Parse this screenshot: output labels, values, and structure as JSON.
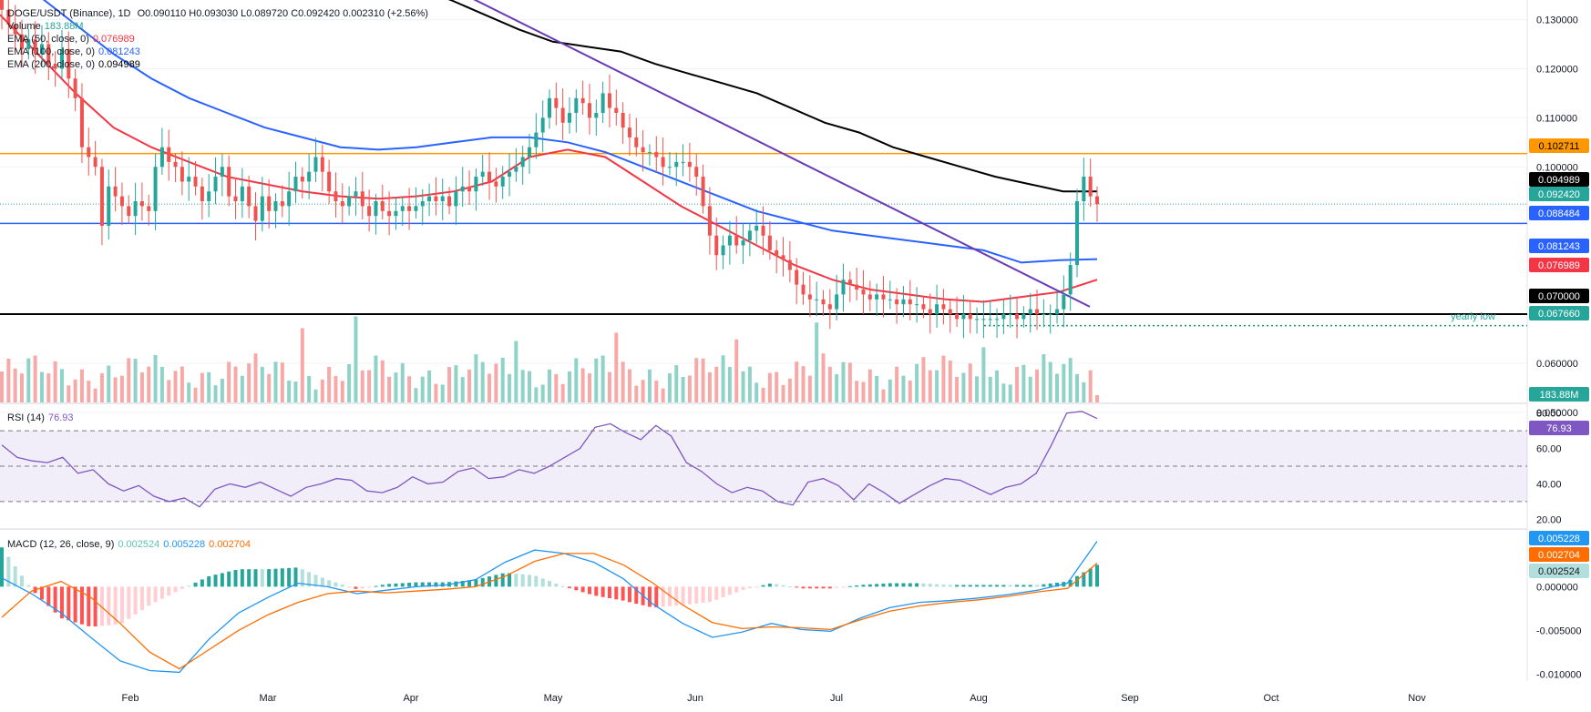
{
  "header": {
    "symbol": "DOGE/USDT (Binance), 1D",
    "ohlc": "O0.090110 H0.093030 L0.089720 C0.092420 0.002310 (+2.56%)",
    "volume_label": "Volume",
    "volume_value": "183.88M",
    "ema50_label": "EMA (50, close, 0)",
    "ema50_value": "0.076989",
    "ema100_label": "EMA (100, close, 0)",
    "ema100_value": "0.081243",
    "ema200_label": "EMA (200, close, 0)",
    "ema200_value": "0.094989"
  },
  "rsi_header": {
    "label": "RSI (14)",
    "value": "76.93"
  },
  "macd_header": {
    "label": "MACD (12, 26, close, 9)",
    "hist": "0.002524",
    "macd": "0.005228",
    "signal": "0.002704"
  },
  "annotations": {
    "yearly_low": "yearly low"
  },
  "colors": {
    "up": "#26a69a",
    "down": "#ef5350",
    "upVol": "#8fd3c8",
    "downVol": "#f7a9a7",
    "ema50": "#f23645",
    "ema100": "#2962ff",
    "ema200": "#000000",
    "trendline": "#673ab7",
    "resistance": "#ff9800",
    "support": "#2962ff",
    "floor": "#000000",
    "rsi": "#7e57c2",
    "macd": "#2196f3",
    "signal": "#ff6d00"
  },
  "chart_data": {
    "type": "candlestick",
    "symbol": "DOGE/USDT",
    "timeframe": "1D",
    "x_axis": {
      "months": [
        "Feb",
        "Mar",
        "Apr",
        "May",
        "Jun",
        "Jul",
        "Aug",
        "Sep",
        "Oct",
        "Nov"
      ]
    },
    "price_axis": {
      "ticks": [
        "0.130000",
        "0.120000",
        "0.110000",
        "0.100000",
        "0.060000",
        "0.050000"
      ],
      "range": [
        0.052,
        0.134
      ]
    },
    "last_price": "0.092420",
    "horizontal_lines": [
      {
        "label": "0.102711",
        "value": 0.102711,
        "color": "#ff9800"
      },
      {
        "label": "0.088484",
        "value": 0.088484,
        "color": "#2962ff"
      },
      {
        "label": "0.070000",
        "value": 0.07,
        "color": "#000000"
      },
      {
        "label": "0.067660",
        "value": 0.06766,
        "color": "#1b9c5a",
        "dotted": true
      }
    ],
    "price_tags": [
      {
        "label": "0.102711",
        "value": 0.102711,
        "bg": "#ff9800",
        "fg": "#000000"
      },
      {
        "label": "0.094989",
        "value": 0.094989,
        "bg": "#000000",
        "fg": "#ffffff"
      },
      {
        "label": "0.092420",
        "value": 0.09242,
        "bg": "#26a69a",
        "fg": "#ffffff"
      },
      {
        "label": "0.088484",
        "value": 0.088484,
        "bg": "#2962ff",
        "fg": "#ffffff"
      },
      {
        "label": "0.081243",
        "value": 0.081243,
        "bg": "#2962ff",
        "fg": "#ffffff"
      },
      {
        "label": "0.076989",
        "value": 0.076989,
        "bg": "#f23645",
        "fg": "#ffffff"
      },
      {
        "label": "0.070000",
        "value": 0.07,
        "bg": "#000000",
        "fg": "#ffffff"
      },
      {
        "label": "0.067660",
        "value": 0.06766,
        "bg": "#26a69a",
        "fg": "#ffffff"
      }
    ],
    "volume_tag": "183.88M",
    "close_path": [
      0.132,
      0.129,
      0.127,
      0.124,
      0.126,
      0.123,
      0.125,
      0.121,
      0.12,
      0.124,
      0.118,
      0.114,
      0.104,
      0.102,
      0.1,
      0.088,
      0.096,
      0.094,
      0.092,
      0.09,
      0.093,
      0.092,
      0.091,
      0.1,
      0.104,
      0.101,
      0.1,
      0.097,
      0.098,
      0.096,
      0.093,
      0.095,
      0.098,
      0.1,
      0.094,
      0.093,
      0.096,
      0.092,
      0.089,
      0.094,
      0.091,
      0.093,
      0.092,
      0.095,
      0.098,
      0.097,
      0.099,
      0.102,
      0.099,
      0.095,
      0.093,
      0.092,
      0.094,
      0.095,
      0.092,
      0.09,
      0.093,
      0.091,
      0.09,
      0.091,
      0.092,
      0.091,
      0.092,
      0.093,
      0.094,
      0.093,
      0.094,
      0.092,
      0.095,
      0.096,
      0.095,
      0.098,
      0.099,
      0.097,
      0.096,
      0.098,
      0.099,
      0.1,
      0.102,
      0.104,
      0.107,
      0.11,
      0.114,
      0.112,
      0.109,
      0.111,
      0.114,
      0.113,
      0.11,
      0.111,
      0.115,
      0.112,
      0.111,
      0.108,
      0.106,
      0.104,
      0.103,
      0.103,
      0.102,
      0.1,
      0.1,
      0.101,
      0.101,
      0.1,
      0.098,
      0.092,
      0.086,
      0.082,
      0.084,
      0.086,
      0.084,
      0.085,
      0.087,
      0.088,
      0.086,
      0.083,
      0.082,
      0.081,
      0.079,
      0.076,
      0.074,
      0.073,
      0.073,
      0.072,
      0.071,
      0.074,
      0.077,
      0.076,
      0.075,
      0.074,
      0.073,
      0.074,
      0.073,
      0.073,
      0.072,
      0.073,
      0.072,
      0.072,
      0.071,
      0.07,
      0.072,
      0.071,
      0.07,
      0.069,
      0.07,
      0.069,
      0.069,
      0.069,
      0.069,
      0.069,
      0.07,
      0.07,
      0.069,
      0.07,
      0.071,
      0.07,
      0.07,
      0.07,
      0.071,
      0.074,
      0.08,
      0.093,
      0.098,
      0.094,
      0.0924
    ],
    "series": [
      {
        "name": "EMA (50, close, 0)",
        "last": 0.076989,
        "path": [
          0.131,
          0.123,
          0.115,
          0.108,
          0.104,
          0.101,
          0.098,
          0.0965,
          0.095,
          0.094,
          0.0935,
          0.094,
          0.095,
          0.097,
          0.102,
          0.1035,
          0.102,
          0.097,
          0.092,
          0.088,
          0.084,
          0.08,
          0.077,
          0.075,
          0.074,
          0.073,
          0.0725,
          0.0735,
          0.0745,
          0.077
        ]
      },
      {
        "name": "EMA (100, close, 0)",
        "last": 0.081243,
        "path": [
          0.14,
          0.135,
          0.129,
          0.123,
          0.118,
          0.114,
          0.111,
          0.108,
          0.106,
          0.104,
          0.1035,
          0.104,
          0.105,
          0.106,
          0.106,
          0.105,
          0.103,
          0.1,
          0.097,
          0.094,
          0.091,
          0.089,
          0.087,
          0.086,
          0.085,
          0.084,
          0.083,
          0.0805,
          0.081,
          0.0812
        ]
      },
      {
        "name": "EMA (200, close, 0)",
        "last": 0.094989,
        "path": [
          0.138,
          0.1365,
          0.134,
          0.131,
          0.128,
          0.1255,
          0.1245,
          0.1235,
          0.121,
          0.119,
          0.117,
          0.115,
          0.112,
          0.109,
          0.107,
          0.104,
          0.102,
          0.1,
          0.098,
          0.0965,
          0.095,
          0.095
        ]
      }
    ],
    "rsi_axis": {
      "ticks": [
        "80.00",
        "60.00",
        "40.00",
        "20.00"
      ],
      "range": [
        15,
        85
      ],
      "bands": [
        70,
        50,
        30
      ]
    },
    "rsi_value": 76.93,
    "rsi_path": [
      62,
      55,
      53,
      52,
      55,
      46,
      48,
      40,
      36,
      39,
      33,
      30,
      32,
      27,
      37,
      40,
      38,
      41,
      37,
      33,
      38,
      40,
      43,
      42,
      36,
      35,
      38,
      44,
      40,
      41,
      47,
      49,
      43,
      44,
      48,
      46,
      50,
      55,
      60,
      72,
      74,
      69,
      65,
      73,
      67,
      52,
      47,
      40,
      35,
      38,
      36,
      30,
      28,
      41,
      43,
      39,
      31,
      40,
      35,
      29,
      34,
      39,
      43,
      42,
      38,
      34,
      38,
      40,
      46,
      62,
      80,
      81,
      76.93
    ],
    "macd_axis": {
      "ticks": [
        "0.002524",
        "0.000000",
        "-0.005000",
        "-0.010000"
      ],
      "range": [
        -0.0108,
        0.0065
      ]
    },
    "macd_path": [
      0.001,
      -0.0008,
      -0.003,
      -0.0058,
      -0.0085,
      -0.0096,
      -0.0098,
      -0.006,
      -0.003,
      -0.0012,
      0.0004,
      0.0,
      -0.0008,
      -0.0004,
      0.0,
      0.0002,
      0.0008,
      0.0028,
      0.0042,
      0.0038,
      0.0028,
      0.0009,
      -0.002,
      -0.0042,
      -0.0058,
      -0.0052,
      -0.0042,
      -0.0049,
      -0.0051,
      -0.0036,
      -0.0024,
      -0.0018,
      -0.0016,
      -0.0013,
      -0.0009,
      -0.0004,
      0.0004,
      0.0052
    ],
    "signal_path": [
      -0.0035,
      -0.0005,
      0.0006,
      -0.0012,
      -0.0042,
      -0.0075,
      -0.0094,
      -0.0072,
      -0.005,
      -0.0032,
      -0.0018,
      -0.0008,
      -0.0005,
      -0.0007,
      -0.0005,
      -0.0003,
      0.0,
      0.0012,
      0.0029,
      0.0038,
      0.0038,
      0.0025,
      0.0004,
      -0.0021,
      -0.0041,
      -0.0048,
      -0.0046,
      -0.0047,
      -0.0049,
      -0.0038,
      -0.0028,
      -0.0022,
      -0.0018,
      -0.0015,
      -0.0011,
      -0.0006,
      -0.0002,
      0.0027
    ],
    "macd_hist_last": 0.002524
  }
}
